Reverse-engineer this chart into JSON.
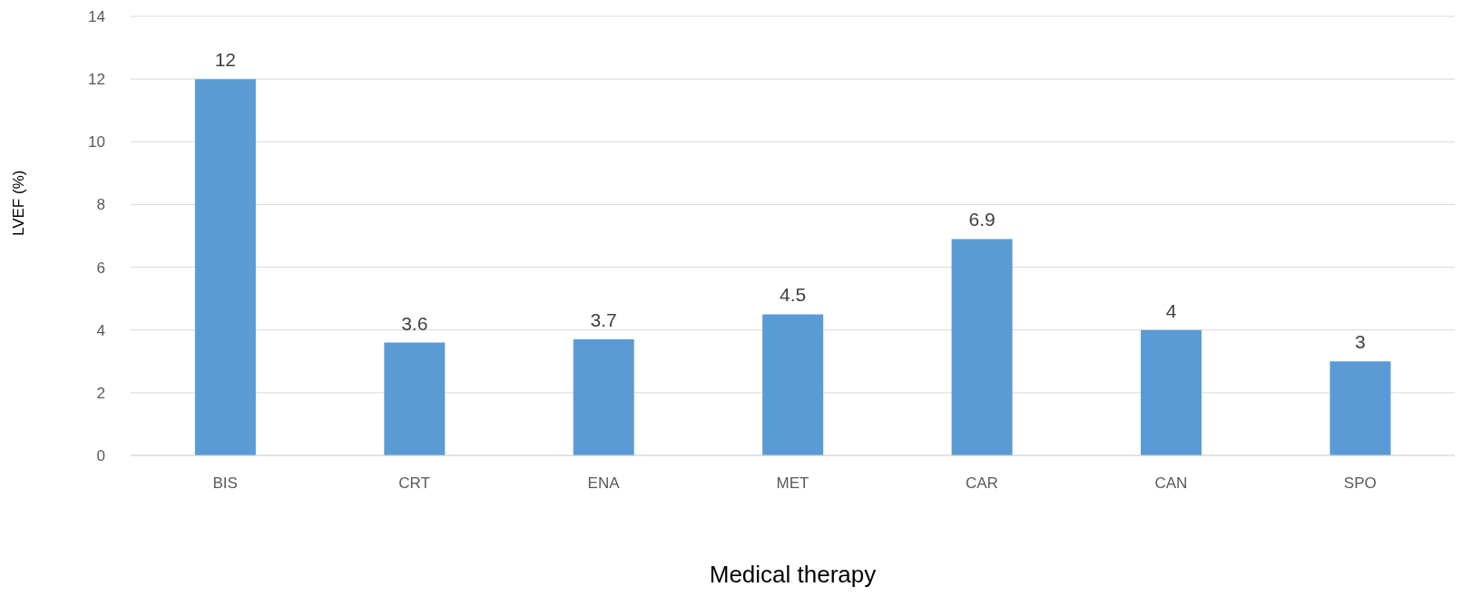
{
  "chart_data": {
    "type": "bar",
    "xlabel": "Medical therapy",
    "ylabel": "LVEF (%)",
    "categories": [
      "BIS",
      "CRT",
      "ENA",
      "MET",
      "CAR",
      "CAN",
      "SPO"
    ],
    "values": [
      12,
      3.6,
      3.7,
      4.5,
      6.9,
      4,
      3
    ],
    "color": "#5b9bd5",
    "ylim": [
      0,
      14
    ],
    "yticks": [
      0,
      2,
      4,
      6,
      8,
      10,
      12,
      14
    ],
    "grid": "y",
    "data_labels": true
  }
}
